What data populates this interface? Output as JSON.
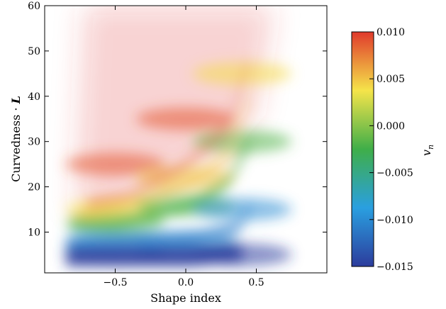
{
  "chart_data": {
    "type": "heatmap",
    "title": "",
    "xlabel": "Shape index",
    "ylabel_text": "Curvedness · ",
    "ylabel_symbol": "L",
    "xlim": [
      -1.0,
      1.0
    ],
    "ylim": [
      1,
      60
    ],
    "xticks": [
      -0.5,
      0.0,
      0.5
    ],
    "xtick_labels": [
      "−0.5",
      "0.0",
      "0.5"
    ],
    "yticks": [
      10,
      20,
      30,
      40,
      50,
      60
    ],
    "ytick_labels": [
      "10",
      "20",
      "30",
      "40",
      "50",
      "60"
    ],
    "colorbar": {
      "label": "v",
      "label_subscript": "n",
      "min": -0.015,
      "max": 0.01,
      "ticks": [
        0.01,
        0.005,
        0.0,
        -0.005,
        -0.01,
        -0.015
      ],
      "tick_labels": [
        "0.010",
        "0.005",
        "0.000",
        "−0.005",
        "−0.010",
        "−0.015"
      ],
      "colormap": [
        "#2c3c9c",
        "#2a9fe0",
        "#3fae49",
        "#f5e44a",
        "#e03a2c"
      ]
    },
    "grid": false,
    "legend": "none",
    "field_description_points": [
      {
        "x": -0.5,
        "y": 5,
        "value": -0.015
      },
      {
        "x": -0.5,
        "y": 8,
        "value": -0.01
      },
      {
        "x": -0.5,
        "y": 12,
        "value": -0.002
      },
      {
        "x": -0.5,
        "y": 15,
        "value": 0.004
      },
      {
        "x": -0.5,
        "y": 25,
        "value": 0.009
      },
      {
        "x": 0.0,
        "y": 5,
        "value": -0.015
      },
      {
        "x": 0.0,
        "y": 8,
        "value": -0.01
      },
      {
        "x": 0.0,
        "y": 16,
        "value": -0.002
      },
      {
        "x": 0.0,
        "y": 22,
        "value": 0.005
      },
      {
        "x": 0.0,
        "y": 35,
        "value": 0.009
      },
      {
        "x": 0.4,
        "y": 5,
        "value": -0.015
      },
      {
        "x": 0.4,
        "y": 15,
        "value": -0.01
      },
      {
        "x": 0.4,
        "y": 30,
        "value": -0.002
      },
      {
        "x": 0.4,
        "y": 45,
        "value": 0.004
      }
    ]
  }
}
